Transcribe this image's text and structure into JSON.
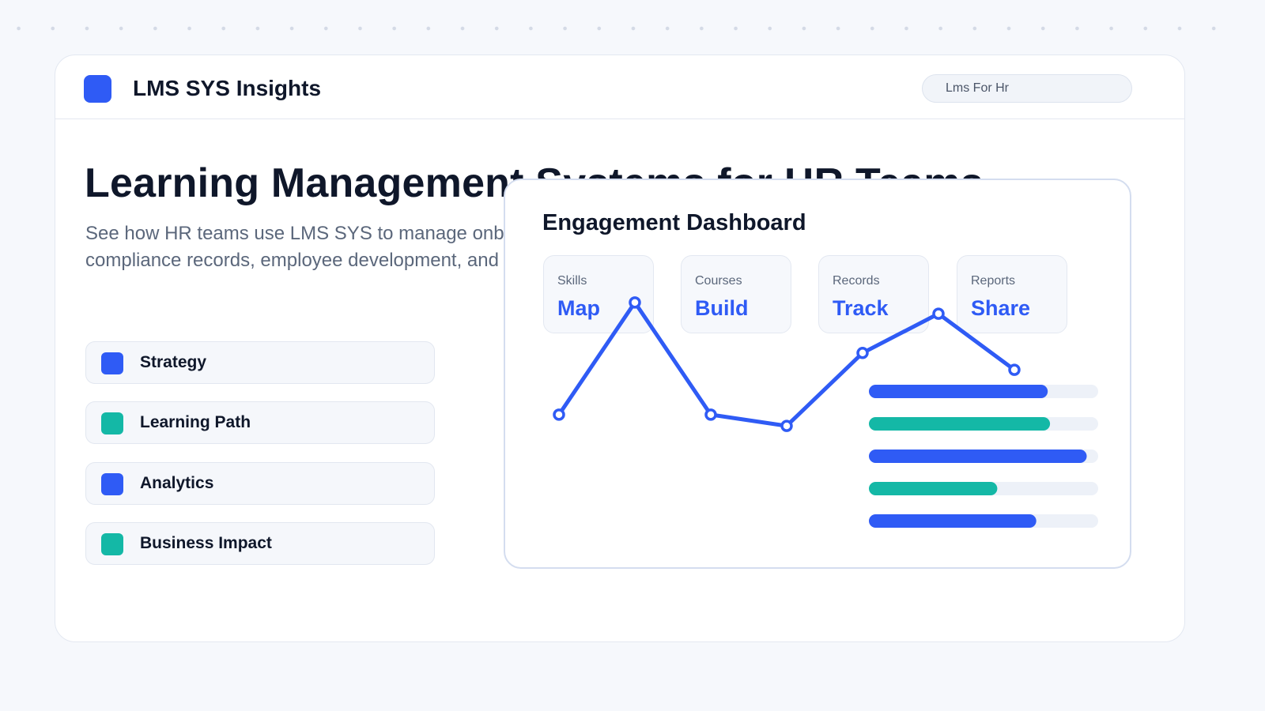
{
  "colors": {
    "accent_blue": "#2f5bf5",
    "accent_teal": "#14b8a6",
    "track": "#edf1f8",
    "title": "#0f172a",
    "muted": "#5b677b"
  },
  "header": {
    "brand": "LMS SYS Insights",
    "search_text": "Lms For Hr"
  },
  "hero": {
    "title": "Learning Management Systems for HR Teams",
    "description": "See how HR teams use LMS SYS to manage onboarding, compliance records, employee development, and visibility."
  },
  "topics": [
    {
      "label": "Strategy",
      "color": "#2f5bf5"
    },
    {
      "label": "Learning Path",
      "color": "#14b8a6"
    },
    {
      "label": "Analytics",
      "color": "#2f5bf5"
    },
    {
      "label": "Business Impact",
      "color": "#14b8a6"
    }
  ],
  "dashboard": {
    "title": "Engagement Dashboard",
    "stats": [
      {
        "caption": "Skills",
        "value": "Map"
      },
      {
        "caption": "Courses",
        "value": "Build"
      },
      {
        "caption": "Records",
        "value": "Track"
      },
      {
        "caption": "Reports",
        "value": "Share"
      }
    ]
  },
  "chart_data": {
    "type": "line",
    "series": [
      {
        "values": [
          22,
          62,
          22,
          18,
          44,
          58,
          38
        ],
        "color": "#2f5bf5"
      }
    ],
    "ylim": [
      0,
      100
    ],
    "grid": false,
    "bars": {
      "type": "bar",
      "values": [
        78,
        79,
        95,
        56,
        73
      ],
      "colors": [
        "#2f5bf5",
        "#14b8a6",
        "#2f5bf5",
        "#14b8a6",
        "#2f5bf5"
      ],
      "max": 100
    }
  }
}
